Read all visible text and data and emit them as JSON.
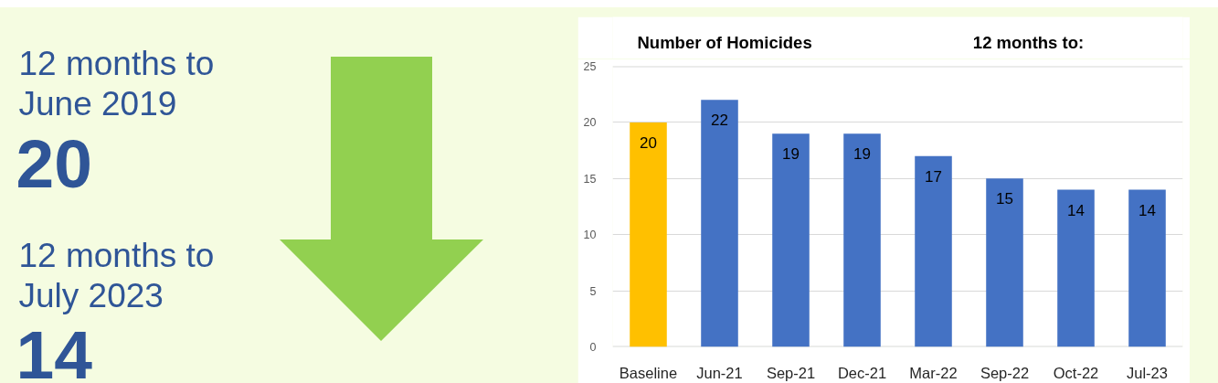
{
  "chart_data": [
    {
      "type": "other",
      "annotations": [
        "12 months to June 2019",
        "20",
        "12 months to July 2023",
        "14"
      ]
    },
    {
      "type": "bar",
      "title": "Number of Homicides",
      "annotations": [
        "12 months to:"
      ],
      "categories": [
        "Baseline",
        "Jun-21",
        "Sep-21",
        "Dec-21",
        "Mar-22",
        "Sep-22",
        "Oct-22",
        "Jul-23"
      ],
      "values": [
        20,
        22,
        19,
        19,
        17,
        15,
        14,
        14
      ],
      "colors": [
        "#ffc000",
        "#4472c4",
        "#4472c4",
        "#4472c4",
        "#4472c4",
        "#4472c4",
        "#4472c4",
        "#4472c4"
      ],
      "ylim": [
        0,
        25
      ],
      "yticks": [
        0,
        5,
        10,
        15,
        20,
        25
      ],
      "grid": "y",
      "data_labels": true
    }
  ]
}
